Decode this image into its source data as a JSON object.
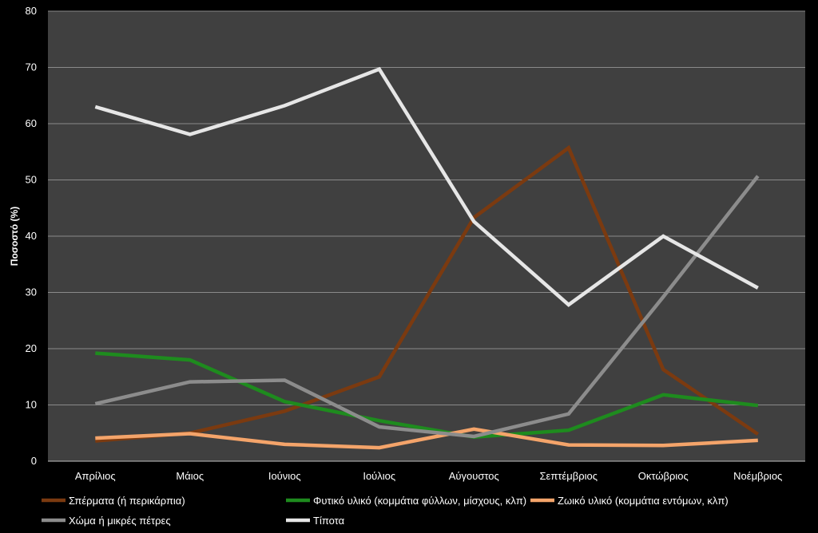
{
  "chart_data": {
    "type": "line",
    "title": "",
    "xlabel": "",
    "ylabel": "Ποσοστό (%)",
    "ylim": [
      0,
      80
    ],
    "yticks": [
      0,
      10,
      20,
      30,
      40,
      50,
      60,
      70,
      80
    ],
    "grid": true,
    "legend_position": "bottom",
    "plot_background": "#404040",
    "page_background": "#000000",
    "categories": [
      "Απρίλιος",
      "Μάιος",
      "Ιούνιος",
      "Ιούλιος",
      "Αύγουστος",
      "Σεπτέμβριος",
      "Οκτώβριος",
      "Νοέμβριος"
    ],
    "series": [
      {
        "name": "Σπέρματα (ή περικάρπια)",
        "color": "#7B3A10",
        "values": [
          3.6,
          5.0,
          8.9,
          15.0,
          43.3,
          55.7,
          16.3,
          4.8
        ]
      },
      {
        "name": "Φυτικό υλικό (κομμάτια φύλλων, μίσχους, κλπ)",
        "color": "#1E8B1E",
        "values": [
          19.2,
          18.0,
          10.6,
          7.2,
          4.3,
          5.5,
          11.8,
          9.9
        ]
      },
      {
        "name": "Ζωικό υλικό (κομμάτια εντόμων, κλπ)",
        "color": "#F4A46A",
        "values": [
          4.1,
          4.9,
          3.0,
          2.4,
          5.7,
          2.9,
          2.8,
          3.7
        ]
      },
      {
        "name": "Χώμα ή μικρές πέτρες",
        "color": "#8C8C8C",
        "values": [
          10.2,
          14.1,
          14.4,
          6.1,
          4.4,
          8.4,
          29.2,
          50.7
        ]
      },
      {
        "name": "Τίποτα",
        "color": "#E6E6E6",
        "values": [
          63.0,
          58.1,
          63.2,
          69.7,
          42.6,
          27.8,
          40.0,
          30.8
        ]
      }
    ]
  }
}
